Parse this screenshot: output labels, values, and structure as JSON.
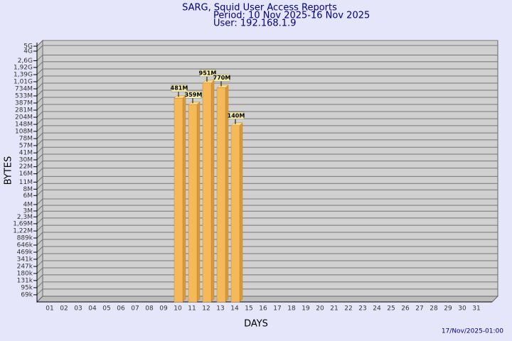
{
  "header": {
    "title": "SARG, Squid User Access Reports",
    "period": "Period: 10 Nov 2025-16 Nov 2025",
    "user": "User: 192.168.1.9"
  },
  "footer": {
    "timestamp": "17/Nov/2025-01:00"
  },
  "chart_data": {
    "type": "bar",
    "x_label": "DAYS",
    "y_label": "BYTES",
    "yscale": "log",
    "grid": true,
    "color": "#f5b95a",
    "categories": [
      "01",
      "02",
      "03",
      "04",
      "05",
      "06",
      "07",
      "08",
      "09",
      "10",
      "11",
      "12",
      "13",
      "14",
      "15",
      "16",
      "17",
      "18",
      "19",
      "20",
      "21",
      "22",
      "23",
      "24",
      "25",
      "26",
      "27",
      "28",
      "29",
      "30",
      "31"
    ],
    "values": [
      null,
      null,
      null,
      null,
      null,
      null,
      null,
      null,
      null,
      481000000,
      359000000,
      951000000,
      770000000,
      140000000,
      null,
      null,
      null,
      null,
      null,
      null,
      null,
      null,
      null,
      null,
      null,
      null,
      null,
      null,
      null,
      null,
      null
    ],
    "value_labels": [
      null,
      null,
      null,
      null,
      null,
      null,
      null,
      null,
      null,
      "481M",
      "359M",
      "951M",
      "770M",
      "140M",
      null,
      null,
      null,
      null,
      null,
      null,
      null,
      null,
      null,
      null,
      null,
      null,
      null,
      null,
      null,
      null,
      null
    ],
    "ylim": [
      50000,
      5000000000
    ],
    "yticks": [
      {
        "value": 69000,
        "label": "69k"
      },
      {
        "value": 95000,
        "label": "95k"
      },
      {
        "value": 131000,
        "label": "131k"
      },
      {
        "value": 180000,
        "label": "180k"
      },
      {
        "value": 247000,
        "label": "247k"
      },
      {
        "value": 341000,
        "label": "341k"
      },
      {
        "value": 469000,
        "label": "469k"
      },
      {
        "value": 646000,
        "label": "646k"
      },
      {
        "value": 889000,
        "label": "889k"
      },
      {
        "value": 1220000,
        "label": "1,22M"
      },
      {
        "value": 1690000,
        "label": "1,69M"
      },
      {
        "value": 2300000,
        "label": "2,3M"
      },
      {
        "value": 3000000,
        "label": "3M"
      },
      {
        "value": 4000000,
        "label": "4M"
      },
      {
        "value": 6000000,
        "label": "6M"
      },
      {
        "value": 8000000,
        "label": "8M"
      },
      {
        "value": 11000000,
        "label": "11M"
      },
      {
        "value": 16000000,
        "label": "16M"
      },
      {
        "value": 22000000,
        "label": "22M"
      },
      {
        "value": 30000000,
        "label": "30M"
      },
      {
        "value": 41000000,
        "label": "41M"
      },
      {
        "value": 57000000,
        "label": "57M"
      },
      {
        "value": 78000000,
        "label": "78M"
      },
      {
        "value": 108000000,
        "label": "108M"
      },
      {
        "value": 148000000,
        "label": "148M"
      },
      {
        "value": 204000000,
        "label": "204M"
      },
      {
        "value": 281000000,
        "label": "281M"
      },
      {
        "value": 387000000,
        "label": "387M"
      },
      {
        "value": 533000000,
        "label": "533M"
      },
      {
        "value": 734000000,
        "label": "734M"
      },
      {
        "value": 1010000000,
        "label": "1,01G"
      },
      {
        "value": 1390000000,
        "label": "1,39G"
      },
      {
        "value": 1920000000,
        "label": "1,92G"
      },
      {
        "value": 2600000000,
        "label": "2,6G"
      },
      {
        "value": 4000000000,
        "label": "4G"
      },
      {
        "value": 5000000000,
        "label": "5G"
      }
    ]
  }
}
